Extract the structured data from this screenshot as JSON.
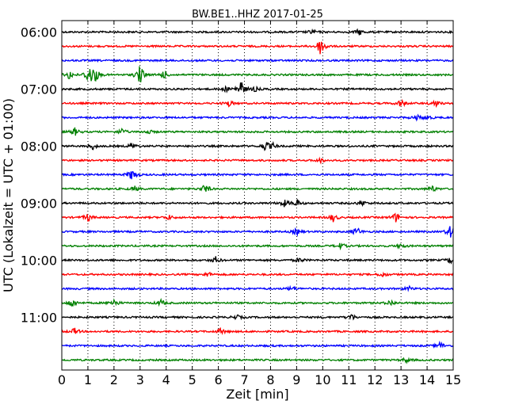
{
  "chart_data": {
    "type": "line",
    "title": "BW.BE1..HHZ 2017-01-25",
    "xlabel": "Zeit  [min]",
    "ylabel": "UTC (Lokalzeit = UTC + 01:00)",
    "xlim": [
      0,
      15
    ],
    "x_ticks": [
      "0",
      "1",
      "2",
      "3",
      "4",
      "5",
      "6",
      "7",
      "8",
      "9",
      "10",
      "11",
      "12",
      "13",
      "14",
      "15"
    ],
    "y_tick_labels": [
      "06:00",
      "07:00",
      "08:00",
      "09:00",
      "10:00",
      "11:00"
    ],
    "grid": "vertical dotted at each minute",
    "trace_colors": [
      "#000000",
      "#ff0000",
      "#0000ff",
      "#008000"
    ],
    "traces": [
      {
        "start": "06:00",
        "events": [
          [
            9.6,
            3
          ],
          [
            11.4,
            4
          ]
        ]
      },
      {
        "start": "06:15",
        "events": [
          [
            9.9,
            8
          ],
          [
            10.0,
            5
          ]
        ]
      },
      {
        "start": "06:30",
        "events": []
      },
      {
        "start": "06:45",
        "events": [
          [
            0.3,
            6
          ],
          [
            1.05,
            14
          ],
          [
            1.3,
            8
          ],
          [
            3.0,
            13
          ],
          [
            3.9,
            5
          ]
        ]
      },
      {
        "start": "07:00",
        "events": [
          [
            6.85,
            12
          ],
          [
            6.3,
            3
          ],
          [
            7.4,
            3
          ]
        ]
      },
      {
        "start": "07:15",
        "events": [
          [
            6.4,
            4
          ],
          [
            13.0,
            5
          ],
          [
            14.3,
            5
          ]
        ]
      },
      {
        "start": "07:30",
        "events": [
          [
            13.6,
            3
          ],
          [
            14.0,
            3
          ]
        ]
      },
      {
        "start": "07:45",
        "events": [
          [
            0.5,
            5
          ],
          [
            2.3,
            4
          ],
          [
            3.3,
            3
          ]
        ]
      },
      {
        "start": "08:00",
        "events": [
          [
            1.2,
            4
          ],
          [
            2.7,
            4
          ],
          [
            7.8,
            6
          ],
          [
            8.1,
            3
          ]
        ]
      },
      {
        "start": "08:15",
        "events": [
          [
            9.9,
            3
          ]
        ]
      },
      {
        "start": "08:30",
        "events": [
          [
            2.7,
            8
          ]
        ]
      },
      {
        "start": "08:45",
        "events": [
          [
            2.8,
            3
          ],
          [
            5.5,
            6
          ],
          [
            14.2,
            4
          ]
        ]
      },
      {
        "start": "09:00",
        "events": [
          [
            8.5,
            5
          ],
          [
            9.0,
            5
          ],
          [
            11.5,
            4
          ]
        ]
      },
      {
        "start": "09:15",
        "events": [
          [
            1.0,
            5
          ],
          [
            4.1,
            3
          ],
          [
            10.4,
            5
          ],
          [
            12.8,
            6
          ]
        ]
      },
      {
        "start": "09:30",
        "events": [
          [
            9.0,
            4
          ],
          [
            11.3,
            6
          ],
          [
            14.9,
            8
          ]
        ]
      },
      {
        "start": "09:45",
        "events": [
          [
            10.7,
            4
          ],
          [
            13.0,
            3
          ]
        ]
      },
      {
        "start": "10:00",
        "events": [
          [
            5.9,
            4
          ],
          [
            9.1,
            3
          ],
          [
            14.9,
            4
          ]
        ]
      },
      {
        "start": "10:15",
        "events": [
          [
            5.6,
            3
          ],
          [
            12.3,
            3
          ]
        ]
      },
      {
        "start": "10:30",
        "events": [
          [
            8.8,
            3
          ],
          [
            13.3,
            3
          ]
        ]
      },
      {
        "start": "10:45",
        "events": [
          [
            0.4,
            6
          ],
          [
            2.0,
            5
          ],
          [
            3.8,
            4
          ],
          [
            12.6,
            4
          ]
        ]
      },
      {
        "start": "11:00",
        "events": [
          [
            6.7,
            3
          ],
          [
            11.1,
            4
          ]
        ]
      },
      {
        "start": "11:15",
        "events": [
          [
            0.5,
            4
          ],
          [
            6.1,
            4
          ]
        ]
      },
      {
        "start": "11:30",
        "events": [
          [
            14.5,
            5
          ]
        ]
      },
      {
        "start": "11:45",
        "events": [
          [
            13.2,
            3
          ]
        ]
      }
    ]
  }
}
